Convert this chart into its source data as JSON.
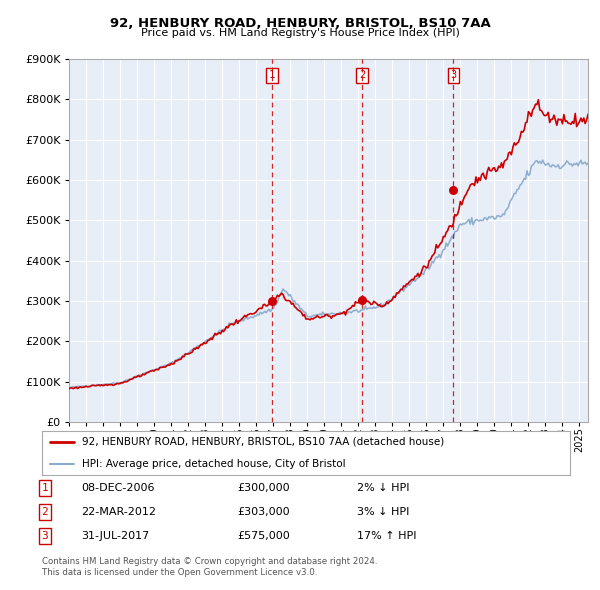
{
  "title": "92, HENBURY ROAD, HENBURY, BRISTOL, BS10 7AA",
  "subtitle": "Price paid vs. HM Land Registry's House Price Index (HPI)",
  "legend_line1": "92, HENBURY ROAD, HENBURY, BRISTOL, BS10 7AA (detached house)",
  "legend_line2": "HPI: Average price, detached house, City of Bristol",
  "footer1": "Contains HM Land Registry data © Crown copyright and database right 2024.",
  "footer2": "This data is licensed under the Open Government Licence v3.0.",
  "transactions": [
    {
      "num": "1",
      "date": "08-DEC-2006",
      "price": "£300,000",
      "pct": "2% ↓ HPI",
      "x_year": 2006.93,
      "y_val": 300000
    },
    {
      "num": "2",
      "date": "22-MAR-2012",
      "price": "£303,000",
      "pct": "3% ↓ HPI",
      "x_year": 2012.22,
      "y_val": 303000
    },
    {
      "num": "3",
      "date": "31-JUL-2017",
      "price": "£575,000",
      "pct": "17% ↑ HPI",
      "x_year": 2017.58,
      "y_val": 575000
    }
  ],
  "property_color": "#cc0000",
  "hpi_color": "#88aacc",
  "plot_bg": "#e8eef8",
  "grid_color": "#ffffff",
  "vline_color": "#cc0000",
  "dot_color": "#cc0000",
  "ylim": [
    0,
    900000
  ],
  "xlim_start": 1995.0,
  "xlim_end": 2025.5,
  "hpi_anchors": {
    "1995.0": 85000,
    "1998.0": 97000,
    "2001.0": 145000,
    "2002.5": 185000,
    "2004.5": 242000,
    "2007.0": 280000,
    "2007.6": 330000,
    "2009.0": 262000,
    "2011.0": 270000,
    "2012.5": 278000,
    "2013.5": 290000,
    "2016.0": 375000,
    "2017.5": 455000,
    "2018.0": 490000,
    "2019.0": 500000,
    "2020.5": 510000,
    "2021.5": 585000,
    "2022.5": 648000,
    "2023.5": 635000,
    "2024.5": 640000,
    "2025.5": 640000
  },
  "prop_anchors": {
    "1995.0": 83000,
    "1998.0": 95000,
    "2001.0": 143000,
    "2002.5": 182000,
    "2004.5": 240000,
    "2006.9": 296000,
    "2007.5": 318000,
    "2009.0": 255000,
    "2011.0": 268000,
    "2012.2": 301000,
    "2013.5": 288000,
    "2016.0": 385000,
    "2017.5": 490000,
    "2018.5": 588000,
    "2019.5": 615000,
    "2020.5": 635000,
    "2021.5": 705000,
    "2022.0": 765000,
    "2022.5": 788000,
    "2023.0": 758000,
    "2024.0": 748000,
    "2025.5": 748000
  }
}
